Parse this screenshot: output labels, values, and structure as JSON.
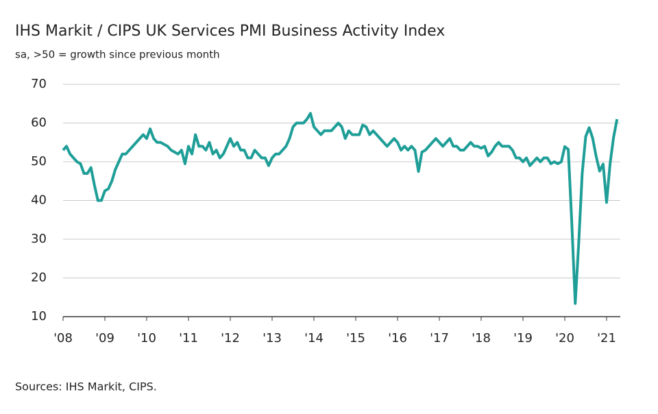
{
  "chart_data": {
    "type": "line",
    "title": "IHS Markit / CIPS UK Services PMI Business Activity Index",
    "subtitle": "sa, >50 = growth since previous month",
    "source": "Sources: IHS Markit, CIPS.",
    "categories": [
      "'08",
      null,
      null,
      null,
      null,
      null,
      null,
      null,
      null,
      null,
      null,
      null,
      "'09",
      null,
      null,
      null,
      null,
      null,
      null,
      null,
      null,
      null,
      null,
      null,
      "'10",
      null,
      null,
      null,
      null,
      null,
      null,
      null,
      null,
      null,
      null,
      null,
      "'11",
      null,
      null,
      null,
      null,
      null,
      null,
      null,
      null,
      null,
      null,
      null,
      "'12",
      null,
      null,
      null,
      null,
      null,
      null,
      null,
      null,
      null,
      null,
      null,
      "'13",
      null,
      null,
      null,
      null,
      null,
      null,
      null,
      null,
      null,
      null,
      null,
      "'14",
      null,
      null,
      null,
      null,
      null,
      null,
      null,
      null,
      null,
      null,
      null,
      "'15",
      null,
      null,
      null,
      null,
      null,
      null,
      null,
      null,
      null,
      null,
      null,
      "'16",
      null,
      null,
      null,
      null,
      null,
      null,
      null,
      null,
      null,
      null,
      null,
      "'17",
      null,
      null,
      null,
      null,
      null,
      null,
      null,
      null,
      null,
      null,
      null,
      "'18",
      null,
      null,
      null,
      null,
      null,
      null,
      null,
      null,
      null,
      null,
      null,
      "'19",
      null,
      null,
      null,
      null,
      null,
      null,
      null,
      null,
      null,
      null,
      null,
      "'20",
      null,
      null,
      null,
      null,
      null,
      null,
      null,
      null,
      null,
      null,
      null,
      "'21",
      null,
      null,
      null
    ],
    "series": [
      {
        "name": "UK Services PMI Business Activity Index",
        "color": "#1f9e98",
        "values": [
          53,
          54,
          52,
          51,
          50,
          49.5,
          47,
          47,
          48.5,
          44,
          40,
          40,
          42.5,
          43,
          45,
          48,
          50,
          52,
          52,
          53,
          54,
          55,
          56,
          57,
          56,
          58.5,
          56,
          55,
          55,
          54.5,
          54,
          53,
          52.5,
          52,
          53,
          49.5,
          54,
          52,
          57,
          54,
          54,
          53,
          55,
          52,
          53,
          51,
          52,
          54,
          56,
          54,
          55,
          53,
          53,
          51,
          51,
          53,
          52,
          51,
          51,
          49,
          51,
          52,
          52,
          53,
          54,
          56,
          59,
          60,
          60,
          60,
          61,
          62.5,
          59,
          58,
          57,
          58,
          58,
          58,
          59,
          60,
          59,
          56,
          58,
          57,
          57,
          57,
          59.5,
          59,
          57,
          58,
          57,
          56,
          55,
          54,
          55,
          56,
          55,
          53,
          54,
          53,
          54,
          53,
          47.5,
          52.5,
          53,
          54,
          55,
          56,
          55,
          54,
          55,
          56,
          54,
          54,
          53,
          53,
          54,
          55,
          54,
          54,
          53.5,
          54,
          51.5,
          52.5,
          54,
          55,
          54,
          54,
          54,
          53,
          51,
          51,
          50,
          51,
          49,
          50,
          51,
          50,
          51,
          51,
          49.5,
          50,
          49.5,
          50,
          53.9,
          53.2,
          34.5,
          13.4,
          29,
          47,
          56.5,
          58.8,
          56.1,
          51.4,
          47.6,
          49.4,
          39.5,
          49.5,
          56.3,
          61
        ]
      }
    ],
    "ylim": [
      10,
      70
    ],
    "yticks": [
      10,
      20,
      30,
      40,
      50,
      60,
      70
    ],
    "grid": true
  }
}
